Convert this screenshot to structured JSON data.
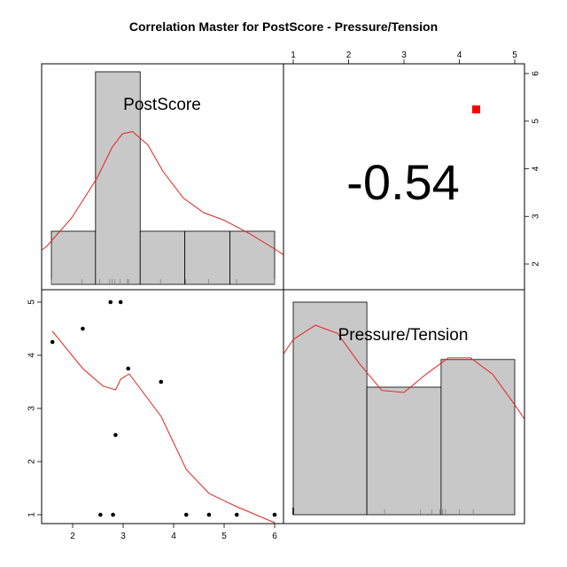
{
  "title": "Correlation Master for PostScore - Pressure/Tension",
  "correlation_text": "-0.54",
  "colors": {
    "bar_fill": "#c8c8c8",
    "density_line": "#e8201e",
    "lowess_line": "#e8201e",
    "significance_marker": "#ff0000",
    "points": "#000000"
  },
  "chart_data": [
    {
      "type": "histogram",
      "panel": "top-left",
      "label": "PostScore",
      "bins": [
        {
          "from": 1.6,
          "to": 2.47,
          "count": 1
        },
        {
          "from": 2.47,
          "to": 3.35,
          "count": 4
        },
        {
          "from": 3.35,
          "to": 4.23,
          "count": 1
        },
        {
          "from": 4.23,
          "to": 5.12,
          "count": 1
        },
        {
          "from": 5.12,
          "to": 6.0,
          "count": 1
        }
      ],
      "density_curve": [
        [
          0.5,
          0.25
        ],
        [
          1.0,
          0.45
        ],
        [
          1.5,
          0.85
        ],
        [
          2.0,
          1.5
        ],
        [
          2.5,
          2.4
        ],
        [
          2.8,
          3.1
        ],
        [
          3.0,
          3.4
        ],
        [
          3.2,
          3.45
        ],
        [
          3.5,
          3.15
        ],
        [
          3.8,
          2.55
        ],
        [
          4.2,
          1.95
        ],
        [
          4.6,
          1.62
        ],
        [
          5.0,
          1.45
        ],
        [
          5.5,
          1.15
        ],
        [
          6.0,
          0.8
        ],
        [
          6.2,
          0.65
        ]
      ],
      "rug": [
        1.6,
        2.2,
        2.55,
        2.75,
        2.8,
        2.85,
        2.95,
        3.1,
        3.12,
        3.75,
        4.25,
        4.7,
        5.25,
        6.0
      ]
    },
    {
      "type": "scatter",
      "panel": "bottom-left",
      "xlabel": "PostScore",
      "ylabel": "Pressure/Tension",
      "xlim": [
        1.4,
        6.1
      ],
      "ylim": [
        0.9,
        5.1
      ],
      "x_ticks": [
        2,
        3,
        4,
        5,
        6
      ],
      "y_ticks": [
        1,
        2,
        3,
        4,
        5
      ],
      "points": [
        [
          1.6,
          4.25
        ],
        [
          2.2,
          4.5
        ],
        [
          2.55,
          1.0
        ],
        [
          2.75,
          5.0
        ],
        [
          2.8,
          1.0
        ],
        [
          2.85,
          2.5
        ],
        [
          2.95,
          5.0
        ],
        [
          3.1,
          3.75
        ],
        [
          3.75,
          3.5
        ],
        [
          4.25,
          1.0
        ],
        [
          4.7,
          1.0
        ],
        [
          5.25,
          1.0
        ],
        [
          6.0,
          1.0
        ]
      ],
      "lowess": [
        [
          1.6,
          4.45
        ],
        [
          2.2,
          3.75
        ],
        [
          2.6,
          3.42
        ],
        [
          2.85,
          3.35
        ],
        [
          2.95,
          3.55
        ],
        [
          3.12,
          3.65
        ],
        [
          3.75,
          2.85
        ],
        [
          4.25,
          1.85
        ],
        [
          4.7,
          1.4
        ],
        [
          5.25,
          1.15
        ],
        [
          6.0,
          0.85
        ]
      ]
    },
    {
      "type": "histogram",
      "panel": "bottom-right",
      "label": "Pressure/Tension",
      "bins": [
        {
          "from": 1.0,
          "to": 2.33,
          "count": 5
        },
        {
          "from": 2.33,
          "to": 3.67,
          "count": 3
        },
        {
          "from": 3.67,
          "to": 5.0,
          "count": 3.65
        }
      ],
      "density_curve": [
        [
          -0.6,
          0.6
        ],
        [
          0.0,
          1.8
        ],
        [
          0.5,
          3.3
        ],
        [
          1.0,
          4.3
        ],
        [
          1.4,
          4.65
        ],
        [
          1.8,
          4.45
        ],
        [
          2.2,
          3.7
        ],
        [
          2.6,
          3.05
        ],
        [
          3.0,
          3.0
        ],
        [
          3.4,
          3.45
        ],
        [
          3.8,
          3.85
        ],
        [
          4.2,
          3.85
        ],
        [
          4.6,
          3.45
        ],
        [
          5.0,
          2.7
        ],
        [
          5.4,
          1.9
        ],
        [
          5.8,
          1.2
        ]
      ],
      "rug": [
        1.0,
        2.65,
        3.3,
        3.5,
        3.65,
        3.7,
        3.75,
        4.0,
        4.25
      ]
    },
    {
      "type": "correlation",
      "panel": "top-right",
      "value": -0.54,
      "x_ticks": [
        1,
        2,
        3,
        4,
        5
      ],
      "y_ticks": [
        2,
        3,
        4,
        5,
        6
      ],
      "xlim": [
        0.9,
        5.1
      ],
      "ylim": [
        1.4,
        6.1
      ]
    }
  ]
}
